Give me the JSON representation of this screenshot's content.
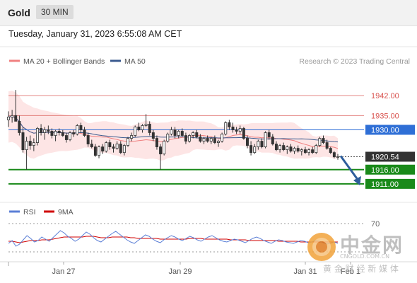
{
  "header": {
    "symbol": "Gold",
    "interval": "30 MIN"
  },
  "timestamp": "Tuesday, January 31, 2023 6:55:08 AM CET",
  "legend": {
    "ma20": "MA 20 + Bollinger Bands",
    "ma50": "MA 50",
    "credit": "Research © 2023 Trading Central"
  },
  "rsi_legend": {
    "rsi": "RSI",
    "ma9": "9MA"
  },
  "watermark": {
    "logo_text": "中金网",
    "domain": "CNGOLD.COM.CN",
    "tagline": "黄 金 财 经 新 媒 体"
  },
  "colors": {
    "resistance": "#d9534f",
    "pivot": "#2f6fd6",
    "support": "#1a8a1a",
    "current": "#333333",
    "candle": "#333333",
    "ma20": "#f08080",
    "bollinger_fill": "#fde2e2",
    "ma50": "#3b5b8f",
    "rsi": "#5b7fd6",
    "rsi_ma": "#d00000",
    "arrow": "#2d5d9b"
  },
  "chart_data": [
    {
      "type": "candlestick",
      "title": "",
      "x_labels": [
        "Jan 27",
        "Jan 29",
        "Jan 31",
        "Feb 1"
      ],
      "ylim": [
        1905,
        1952
      ],
      "levels": [
        {
          "label": "1942.00",
          "value": 1942.0,
          "role": "resistance"
        },
        {
          "label": "1935.00",
          "value": 1935.0,
          "role": "resistance"
        },
        {
          "label": "1930.00",
          "value": 1930.0,
          "role": "pivot"
        },
        {
          "label": "1920.54",
          "value": 1920.54,
          "role": "current"
        },
        {
          "label": "1916.00",
          "value": 1916.0,
          "role": "support"
        },
        {
          "label": "1911.00",
          "value": 1911.0,
          "role": "support"
        }
      ],
      "ohlc": [
        [
          1933.5,
          1936.5,
          1931.0,
          1934.5
        ],
        [
          1934.5,
          1937.0,
          1932.5,
          1935.0
        ],
        [
          1935.0,
          1944.0,
          1933.0,
          1933.0
        ],
        [
          1933.0,
          1935.0,
          1928.0,
          1929.0
        ],
        [
          1929.0,
          1931.0,
          1922.0,
          1923.0
        ],
        [
          1923.0,
          1927.5,
          1916.0,
          1926.0
        ],
        [
          1926.0,
          1928.0,
          1923.0,
          1924.5
        ],
        [
          1924.5,
          1927.0,
          1922.5,
          1925.5
        ],
        [
          1925.5,
          1931.0,
          1924.5,
          1930.5
        ],
        [
          1930.5,
          1932.0,
          1928.0,
          1929.0
        ],
        [
          1929.0,
          1931.0,
          1926.5,
          1930.0
        ],
        [
          1930.0,
          1931.5,
          1928.5,
          1929.5
        ],
        [
          1929.5,
          1930.5,
          1927.0,
          1928.0
        ],
        [
          1928.0,
          1930.0,
          1926.0,
          1929.5
        ],
        [
          1929.5,
          1930.5,
          1928.0,
          1929.0
        ],
        [
          1929.0,
          1930.0,
          1927.5,
          1928.0
        ],
        [
          1928.0,
          1929.0,
          1925.5,
          1926.5
        ],
        [
          1926.5,
          1929.5,
          1926.0,
          1929.0
        ],
        [
          1929.0,
          1930.0,
          1927.5,
          1928.5
        ],
        [
          1928.5,
          1932.0,
          1928.0,
          1931.5
        ],
        [
          1931.5,
          1932.5,
          1929.0,
          1930.0
        ],
        [
          1930.0,
          1931.0,
          1927.5,
          1928.0
        ],
        [
          1928.0,
          1929.0,
          1924.0,
          1925.0
        ],
        [
          1925.0,
          1926.5,
          1923.5,
          1924.0
        ],
        [
          1924.0,
          1925.0,
          1920.5,
          1921.0
        ],
        [
          1921.0,
          1924.5,
          1920.0,
          1924.0
        ],
        [
          1924.0,
          1925.0,
          1921.5,
          1922.5
        ],
        [
          1922.5,
          1926.0,
          1922.0,
          1925.5
        ],
        [
          1925.5,
          1926.5,
          1923.0,
          1924.0
        ],
        [
          1924.0,
          1925.0,
          1922.0,
          1923.5
        ],
        [
          1923.5,
          1926.0,
          1923.0,
          1925.0
        ],
        [
          1925.0,
          1926.0,
          1921.5,
          1922.0
        ],
        [
          1922.0,
          1925.0,
          1921.0,
          1924.5
        ],
        [
          1924.5,
          1927.5,
          1924.0,
          1927.0
        ],
        [
          1927.0,
          1929.0,
          1926.0,
          1928.0
        ],
        [
          1928.0,
          1931.5,
          1927.5,
          1931.0
        ],
        [
          1931.0,
          1932.5,
          1929.5,
          1930.0
        ],
        [
          1930.0,
          1932.0,
          1929.0,
          1931.5
        ],
        [
          1931.5,
          1935.5,
          1931.0,
          1932.0
        ],
        [
          1932.0,
          1933.0,
          1928.0,
          1929.0
        ],
        [
          1929.0,
          1930.0,
          1926.0,
          1927.0
        ],
        [
          1927.0,
          1928.0,
          1923.0,
          1924.0
        ],
        [
          1924.0,
          1925.0,
          1916.0,
          1921.5
        ],
        [
          1921.5,
          1926.5,
          1921.0,
          1926.0
        ],
        [
          1926.0,
          1929.0,
          1925.5,
          1928.5
        ],
        [
          1928.5,
          1931.0,
          1928.0,
          1930.0
        ],
        [
          1930.0,
          1931.0,
          1927.0,
          1928.0
        ],
        [
          1928.0,
          1930.0,
          1927.0,
          1929.5
        ],
        [
          1929.5,
          1930.5,
          1927.5,
          1928.0
        ],
        [
          1928.0,
          1929.0,
          1925.0,
          1926.0
        ],
        [
          1926.0,
          1928.5,
          1925.5,
          1928.0
        ],
        [
          1928.0,
          1929.5,
          1927.0,
          1929.0
        ],
        [
          1929.0,
          1930.0,
          1927.0,
          1927.5
        ],
        [
          1927.5,
          1928.5,
          1925.5,
          1926.0
        ],
        [
          1926.0,
          1927.5,
          1925.0,
          1927.0
        ],
        [
          1927.0,
          1928.0,
          1925.5,
          1926.0
        ],
        [
          1926.0,
          1927.5,
          1925.0,
          1927.0
        ],
        [
          1927.0,
          1928.0,
          1925.0,
          1925.5
        ],
        [
          1925.5,
          1926.5,
          1924.0,
          1926.0
        ],
        [
          1926.0,
          1929.0,
          1925.5,
          1928.5
        ],
        [
          1928.5,
          1933.0,
          1928.0,
          1932.5
        ],
        [
          1932.5,
          1933.5,
          1930.0,
          1931.0
        ],
        [
          1931.0,
          1932.5,
          1929.0,
          1930.0
        ],
        [
          1930.0,
          1931.0,
          1928.5,
          1929.5
        ],
        [
          1929.5,
          1931.5,
          1928.5,
          1930.5
        ],
        [
          1930.5,
          1931.0,
          1926.5,
          1927.0
        ],
        [
          1927.0,
          1928.0,
          1923.5,
          1924.5
        ],
        [
          1924.5,
          1926.0,
          1921.0,
          1922.0
        ],
        [
          1922.0,
          1925.0,
          1921.5,
          1924.0
        ],
        [
          1924.0,
          1926.5,
          1923.0,
          1926.0
        ],
        [
          1926.0,
          1927.0,
          1923.5,
          1924.0
        ],
        [
          1924.0,
          1929.5,
          1923.5,
          1929.0
        ],
        [
          1929.0,
          1930.0,
          1926.5,
          1927.5
        ],
        [
          1927.5,
          1928.5,
          1924.5,
          1925.0
        ],
        [
          1925.0,
          1926.0,
          1922.5,
          1923.0
        ],
        [
          1923.0,
          1925.0,
          1922.0,
          1924.5
        ],
        [
          1924.5,
          1925.5,
          1922.5,
          1923.0
        ],
        [
          1923.0,
          1924.5,
          1921.5,
          1924.0
        ],
        [
          1924.0,
          1925.0,
          1922.0,
          1922.5
        ],
        [
          1922.5,
          1924.0,
          1921.5,
          1923.5
        ],
        [
          1923.5,
          1924.5,
          1922.0,
          1922.5
        ],
        [
          1922.5,
          1923.5,
          1921.0,
          1923.0
        ],
        [
          1923.0,
          1924.0,
          1921.5,
          1922.0
        ],
        [
          1922.0,
          1923.5,
          1921.0,
          1923.0
        ],
        [
          1923.0,
          1924.0,
          1921.5,
          1922.0
        ],
        [
          1922.0,
          1925.0,
          1921.5,
          1924.5
        ],
        [
          1924.5,
          1927.5,
          1924.0,
          1927.0
        ],
        [
          1927.0,
          1928.0,
          1925.0,
          1925.5
        ],
        [
          1925.5,
          1926.5,
          1923.0,
          1923.5
        ],
        [
          1923.5,
          1924.0,
          1921.5,
          1922.0
        ],
        [
          1922.0,
          1922.5,
          1920.0,
          1920.5
        ],
        [
          1920.5,
          1921.5,
          1919.5,
          1920.54
        ]
      ]
    },
    {
      "type": "line",
      "title": "RSI",
      "ylim": [
        20,
        80
      ],
      "reference_lines": [
        {
          "label": "70",
          "value": 70
        },
        {
          "value": 30
        }
      ],
      "series": [
        {
          "name": "RSI",
          "values": [
            42,
            46,
            38,
            41,
            47,
            53,
            49,
            44,
            46,
            51,
            48,
            45,
            50,
            55,
            60,
            57,
            52,
            49,
            45,
            48,
            53,
            58,
            55,
            50,
            46,
            44,
            48,
            52,
            56,
            59,
            55,
            51,
            47,
            44,
            42,
            46,
            50,
            54,
            52,
            48,
            45,
            43,
            47,
            50,
            53,
            51,
            48,
            46,
            49,
            52,
            50,
            47,
            45,
            48,
            51,
            53,
            50,
            47,
            45,
            44,
            46,
            48,
            47,
            45,
            43,
            46,
            49,
            51,
            49,
            46,
            44,
            42,
            45,
            47,
            46,
            44,
            43,
            42,
            44,
            46,
            45,
            43,
            44,
            46,
            45,
            43,
            41,
            42,
            44,
            42
          ]
        },
        {
          "name": "9MA",
          "values": [
            45,
            45,
            44,
            43,
            44,
            45,
            46,
            46,
            46,
            47,
            47,
            47,
            48,
            49,
            50,
            51,
            51,
            51,
            51,
            51,
            51,
            52,
            52,
            52,
            51,
            50,
            50,
            50,
            51,
            51,
            51,
            51,
            51,
            50,
            50,
            49,
            49,
            49,
            49,
            49,
            49,
            48,
            48,
            48,
            48,
            48,
            48,
            48,
            48,
            49,
            49,
            49,
            49,
            48,
            48,
            48,
            48,
            48,
            48,
            48,
            47,
            47,
            47,
            47,
            47,
            46,
            46,
            46,
            46,
            46,
            46,
            46,
            46,
            45,
            45,
            45,
            45,
            45,
            45,
            44,
            44,
            44,
            44,
            44,
            44,
            44,
            44,
            44,
            44,
            44
          ]
        }
      ]
    }
  ]
}
